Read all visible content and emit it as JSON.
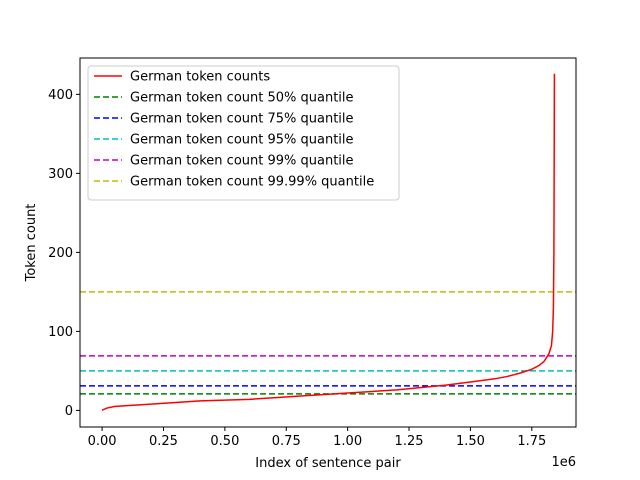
{
  "chart_data": {
    "type": "line",
    "title": "",
    "xlabel": "Index of sentence pair",
    "ylabel": "Token count",
    "x_offset_label": "1e6",
    "x_scale_factor": 1000000,
    "xlim": [
      -0.09,
      1.93
    ],
    "ylim": [
      -21,
      446
    ],
    "xticks": [
      0.0,
      0.25,
      0.5,
      0.75,
      1.0,
      1.25,
      1.5,
      1.75
    ],
    "xtick_labels": [
      "0.00",
      "0.25",
      "0.50",
      "0.75",
      "1.00",
      "1.25",
      "1.50",
      "1.75"
    ],
    "yticks": [
      0,
      100,
      200,
      300,
      400
    ],
    "ytick_labels": [
      "0",
      "100",
      "200",
      "300",
      "400"
    ],
    "grid": false,
    "legend_position": "upper-left",
    "series": [
      {
        "name": "German token counts",
        "style": "solid",
        "color": "#ff0000",
        "x": [
          0.0,
          0.005,
          0.02,
          0.05,
          0.1,
          0.2,
          0.3,
          0.4,
          0.5,
          0.6,
          0.7,
          0.8,
          0.9,
          1.0,
          1.1,
          1.2,
          1.3,
          1.4,
          1.5,
          1.6,
          1.65,
          1.7,
          1.75,
          1.78,
          1.8,
          1.82,
          1.83,
          1.835,
          1.838,
          1.84,
          1.841,
          1.842
        ],
        "y": [
          0,
          1,
          3,
          5,
          6,
          8,
          10,
          12,
          13,
          14,
          16,
          18,
          20,
          22,
          24,
          26,
          29,
          32,
          36,
          40,
          43,
          47,
          52,
          57,
          62,
          72,
          82,
          100,
          130,
          200,
          300,
          426
        ]
      }
    ],
    "hlines": [
      {
        "name": "German token count 50% quantile",
        "y": 21,
        "color": "#008000",
        "style": "dashed"
      },
      {
        "name": "German token count 75% quantile",
        "y": 31,
        "color": "#0000ff",
        "style": "dashed"
      },
      {
        "name": "German token count 95% quantile",
        "y": 50,
        "color": "#00bfbf",
        "style": "dashed"
      },
      {
        "name": "German token count 99% quantile",
        "y": 69,
        "color": "#bf00bf",
        "style": "dashed"
      },
      {
        "name": "German token count 99.99% quantile",
        "y": 150,
        "color": "#bfbf00",
        "style": "dashed"
      }
    ]
  }
}
